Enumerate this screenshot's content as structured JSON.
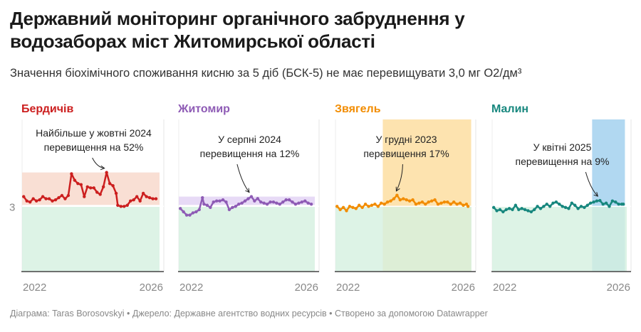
{
  "title": "Державний моніторинг органічного забруднення у водозаборах міст Житомирської області",
  "title_line1": "Державний моніторинг органічного забруднення у",
  "title_line2": "водозаборах міст Житомирської області",
  "subtitle": "Значення біохімічного споживання кисню за 5 діб (БСК-5) не має перевищувати 3,0 мг О2/дм³",
  "footer": "Діаграма: Taras Borosovskyi • Джерело: Державне агентство водних ресурсів • Створено за допомогою Datawrapper",
  "chart_data": [
    {
      "type": "line",
      "panel": "Бердичів",
      "color": "#cc1f1f",
      "band_color": "#f8d9cc",
      "ylim": [
        0,
        7
      ],
      "threshold": 3,
      "y_tick_labels": [
        "3"
      ],
      "x_tick_labels": [
        "2022",
        "2026"
      ],
      "xlim": [
        2021.8,
        2026.2
      ],
      "annotation": [
        "Найбільше у жовтні 2024",
        "перевищення на 52%"
      ],
      "annotation_x": 2024.8,
      "highlight_range": null,
      "x": [
        2021.85,
        2021.95,
        2022.05,
        2022.15,
        2022.25,
        2022.35,
        2022.45,
        2022.55,
        2022.65,
        2022.75,
        2022.85,
        2022.95,
        2023.05,
        2023.15,
        2023.25,
        2023.35,
        2023.45,
        2023.55,
        2023.65,
        2023.75,
        2023.85,
        2023.95,
        2024.05,
        2024.15,
        2024.25,
        2024.35,
        2024.45,
        2024.55,
        2024.65,
        2024.75,
        2024.8,
        2024.9,
        2025.0,
        2025.1,
        2025.2,
        2025.3,
        2025.4,
        2025.5,
        2025.6,
        2025.7,
        2025.8,
        2025.9,
        2026.0
      ],
      "values": [
        3.45,
        3.25,
        3.2,
        3.35,
        3.25,
        3.3,
        3.45,
        3.35,
        3.35,
        3.25,
        3.3,
        3.4,
        3.5,
        3.35,
        3.5,
        4.5,
        4.2,
        4.05,
        4.0,
        3.45,
        3.9,
        3.85,
        3.85,
        3.65,
        3.55,
        3.9,
        4.56,
        4.05,
        3.95,
        3.6,
        3.05,
        3.0,
        3.0,
        3.05,
        3.25,
        3.3,
        3.45,
        3.25,
        3.6,
        3.45,
        3.4,
        3.35,
        3.35
      ]
    },
    {
      "type": "line",
      "panel": "Житомир",
      "color": "#8e5bb5",
      "band_color": "#e3d3f5",
      "ylim": [
        0,
        7
      ],
      "threshold": 3,
      "y_tick_labels": [],
      "x_tick_labels": [
        "2022",
        "2026"
      ],
      "xlim": [
        2021.8,
        2026.2
      ],
      "annotation": [
        "У серпні 2024",
        "перевищення на 12%"
      ],
      "annotation_x": 2024.55,
      "highlight_range": null,
      "x": [
        2021.85,
        2021.95,
        2022.05,
        2022.15,
        2022.25,
        2022.35,
        2022.45,
        2022.55,
        2022.6,
        2022.7,
        2022.8,
        2022.9,
        2023.0,
        2023.1,
        2023.2,
        2023.3,
        2023.4,
        2023.5,
        2023.6,
        2023.7,
        2023.8,
        2023.9,
        2024.0,
        2024.1,
        2024.2,
        2024.3,
        2024.4,
        2024.5,
        2024.6,
        2024.7,
        2024.8,
        2024.9,
        2025.0,
        2025.1,
        2025.2,
        2025.3,
        2025.4,
        2025.5,
        2025.6,
        2025.7,
        2025.8,
        2025.9,
        2026.0
      ],
      "values": [
        2.9,
        2.75,
        2.6,
        2.6,
        2.7,
        2.75,
        2.85,
        3.4,
        3.1,
        3.05,
        2.95,
        3.2,
        3.25,
        3.25,
        3.3,
        3.2,
        2.85,
        2.95,
        3.0,
        3.1,
        3.15,
        3.25,
        3.35,
        3.45,
        3.25,
        3.36,
        3.2,
        3.15,
        3.1,
        3.2,
        3.2,
        3.15,
        3.1,
        3.2,
        3.3,
        3.3,
        3.2,
        3.1,
        3.15,
        3.2,
        3.25,
        3.15,
        3.1
      ]
    },
    {
      "type": "line",
      "panel": "Звягель",
      "color": "#f28c00",
      "band_color": "#fde0a6",
      "ylim": [
        0,
        7
      ],
      "threshold": 3,
      "y_tick_labels": [],
      "x_tick_labels": [
        "2022",
        "2026"
      ],
      "xlim": [
        2021.8,
        2026.2
      ],
      "annotation": [
        "У грудні 2023",
        "перевищення 17%"
      ],
      "annotation_x": 2023.95,
      "highlight_range": [
        2023.3,
        2026.1
      ],
      "x": [
        2021.85,
        2021.95,
        2022.05,
        2022.15,
        2022.25,
        2022.35,
        2022.45,
        2022.55,
        2022.65,
        2022.75,
        2022.85,
        2022.95,
        2023.05,
        2023.15,
        2023.25,
        2023.35,
        2023.45,
        2023.55,
        2023.65,
        2023.75,
        2023.85,
        2023.95,
        2024.05,
        2024.15,
        2024.25,
        2024.35,
        2024.45,
        2024.55,
        2024.65,
        2024.75,
        2024.85,
        2024.95,
        2025.05,
        2025.15,
        2025.25,
        2025.35,
        2025.45,
        2025.55,
        2025.65,
        2025.75,
        2025.85,
        2025.95,
        2026.0
      ],
      "values": [
        3.0,
        2.85,
        2.95,
        2.8,
        3.0,
        2.95,
        2.9,
        3.05,
        2.95,
        3.1,
        3.0,
        3.05,
        3.1,
        3.0,
        3.15,
        3.1,
        3.2,
        3.25,
        3.35,
        3.51,
        3.3,
        3.35,
        3.3,
        3.25,
        3.3,
        3.1,
        3.15,
        3.2,
        3.1,
        3.2,
        3.25,
        3.3,
        3.1,
        3.15,
        3.2,
        3.2,
        3.1,
        3.2,
        3.1,
        3.15,
        3.05,
        3.1,
        3.0
      ]
    },
    {
      "type": "line",
      "panel": "Малин",
      "color": "#17877e",
      "band_color": "#a8d4f0",
      "ylim": [
        0,
        7
      ],
      "threshold": 3,
      "y_tick_labels": [],
      "x_tick_labels": [
        "2022",
        "2026"
      ],
      "xlim": [
        2021.8,
        2026.2
      ],
      "annotation": [
        "У квітні 2025",
        "перевищення на 9%"
      ],
      "annotation_x": 2025.3,
      "highlight_range": [
        2025.0,
        2026.05
      ],
      "x": [
        2021.85,
        2021.95,
        2022.05,
        2022.15,
        2022.25,
        2022.35,
        2022.45,
        2022.55,
        2022.65,
        2022.75,
        2022.85,
        2022.95,
        2023.05,
        2023.15,
        2023.25,
        2023.35,
        2023.45,
        2023.55,
        2023.65,
        2023.75,
        2023.85,
        2023.95,
        2024.05,
        2024.15,
        2024.25,
        2024.35,
        2024.45,
        2024.55,
        2024.65,
        2024.75,
        2024.85,
        2024.95,
        2025.05,
        2025.15,
        2025.25,
        2025.35,
        2025.45,
        2025.55,
        2025.65,
        2025.75,
        2025.85,
        2025.95,
        2026.0
      ],
      "values": [
        2.95,
        2.8,
        2.85,
        2.75,
        2.85,
        2.9,
        2.85,
        3.05,
        2.85,
        2.9,
        2.85,
        2.8,
        2.75,
        2.85,
        3.0,
        2.9,
        3.0,
        3.1,
        3.0,
        3.15,
        3.2,
        3.1,
        3.0,
        2.95,
        2.9,
        3.15,
        3.05,
        2.9,
        3.0,
        2.95,
        3.05,
        3.15,
        3.2,
        3.25,
        3.27,
        3.1,
        3.15,
        3.0,
        3.25,
        3.2,
        3.1,
        3.1,
        3.1
      ]
    }
  ]
}
